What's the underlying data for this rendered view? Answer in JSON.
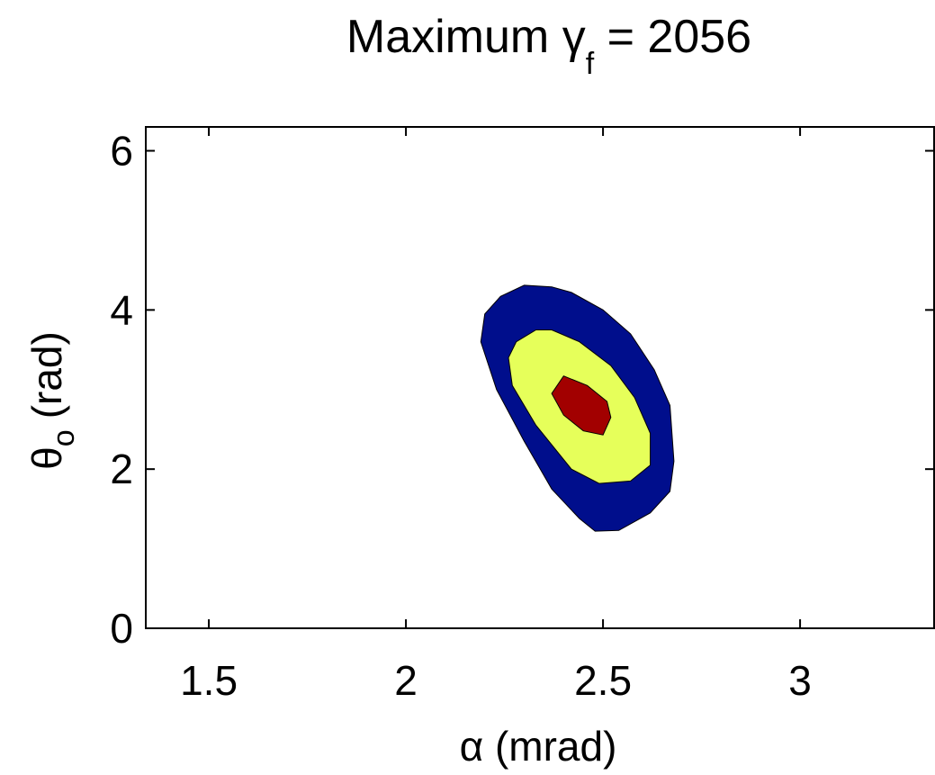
{
  "chart_data": {
    "type": "contour",
    "title": {
      "prefix": "Maximum ",
      "symbol": "γ",
      "subscript": "f",
      "suffix": " = 2056"
    },
    "xlabel": {
      "symbol": "α",
      "unit": " (mrad)"
    },
    "ylabel": {
      "symbol": "θ",
      "subscript": "o",
      "unit": "(rad)"
    },
    "xlim": [
      1.34,
      3.34
    ],
    "ylim": [
      0,
      6.3
    ],
    "xticks": [
      "1.5",
      "2",
      "2.5",
      "3"
    ],
    "yticks": [
      "0",
      "2",
      "4",
      "6"
    ],
    "grid": false,
    "levels": [
      {
        "name": "outer",
        "color": "#000e8c",
        "polygon": [
          [
            2.3,
            4.31
          ],
          [
            2.37,
            4.29
          ],
          [
            2.42,
            4.22
          ],
          [
            2.5,
            4.0
          ],
          [
            2.57,
            3.7
          ],
          [
            2.63,
            3.25
          ],
          [
            2.67,
            2.8
          ],
          [
            2.68,
            2.1
          ],
          [
            2.67,
            1.72
          ],
          [
            2.62,
            1.45
          ],
          [
            2.54,
            1.23
          ],
          [
            2.48,
            1.22
          ],
          [
            2.44,
            1.38
          ],
          [
            2.37,
            1.75
          ],
          [
            2.3,
            2.35
          ],
          [
            2.23,
            3.0
          ],
          [
            2.19,
            3.6
          ],
          [
            2.2,
            3.95
          ],
          [
            2.24,
            4.17
          ]
        ]
      },
      {
        "name": "middle",
        "color": "#e6ff5a",
        "polygon": [
          [
            2.33,
            3.75
          ],
          [
            2.37,
            3.75
          ],
          [
            2.44,
            3.6
          ],
          [
            2.52,
            3.3
          ],
          [
            2.58,
            2.9
          ],
          [
            2.62,
            2.45
          ],
          [
            2.62,
            2.05
          ],
          [
            2.57,
            1.85
          ],
          [
            2.49,
            1.82
          ],
          [
            2.42,
            2.0
          ],
          [
            2.33,
            2.55
          ],
          [
            2.27,
            3.05
          ],
          [
            2.26,
            3.4
          ],
          [
            2.28,
            3.6
          ]
        ]
      },
      {
        "name": "inner",
        "color": "#a20000",
        "polygon": [
          [
            2.4,
            3.17
          ],
          [
            2.46,
            3.05
          ],
          [
            2.51,
            2.85
          ],
          [
            2.52,
            2.65
          ],
          [
            2.5,
            2.43
          ],
          [
            2.45,
            2.48
          ],
          [
            2.4,
            2.68
          ],
          [
            2.37,
            2.95
          ]
        ]
      }
    ]
  }
}
